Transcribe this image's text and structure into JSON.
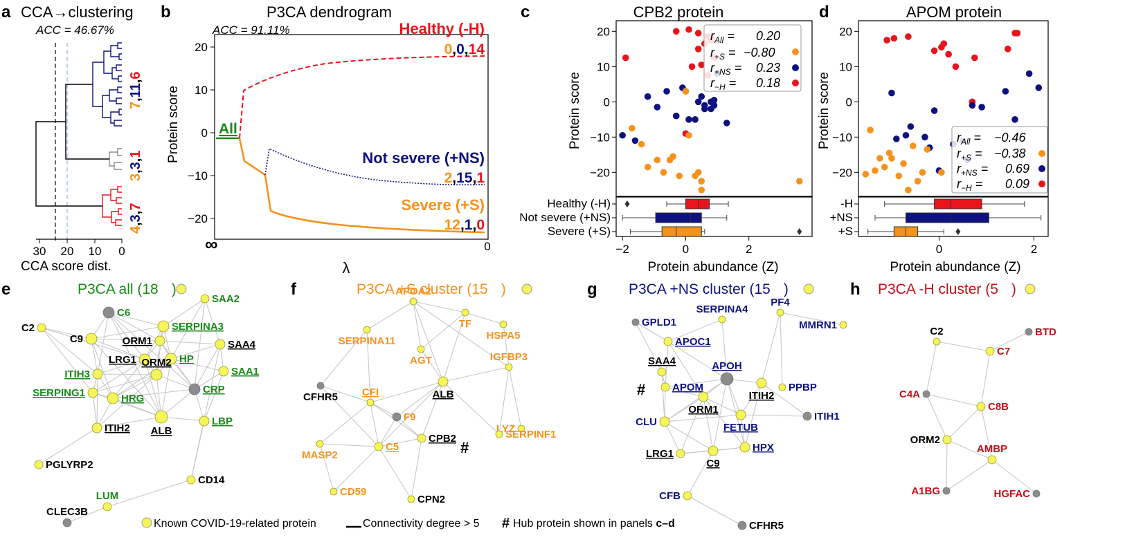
{
  "colors": {
    "healthy": "#e8141c",
    "not_severe": "#0d1280",
    "severe": "#f5921e",
    "green": "#1a8a1a",
    "known": "#f5f55a",
    "gray": "#8c8c8c"
  },
  "panel_a": {
    "letter": "a",
    "title": "CCA→clustering",
    "acc": "ACC = 46.67%",
    "xlabel": "CCA score dist.",
    "ticks": [
      "30",
      "20",
      "10",
      "0"
    ],
    "clusters": [
      {
        "a": "7",
        "b": "11",
        "c": "6"
      },
      {
        "a": "3",
        "b": "3",
        "c": "1"
      },
      {
        "a": "4",
        "b": "3",
        "c": "7"
      }
    ]
  },
  "panel_b": {
    "letter": "b",
    "title": "P3CA dendrogram",
    "acc": "ACC = 91.11%",
    "ylabel": "Protein score",
    "xlabel": "λ",
    "xticks": [
      "∞",
      "0"
    ],
    "all_label": "All",
    "healthy": {
      "label": "Healthy (-H)",
      "a": "0",
      "b": "0",
      "c": "14"
    },
    "not_severe": {
      "label": "Not severe (+NS)",
      "a": "2",
      "b": "15",
      "c": "1"
    },
    "severe": {
      "label": "Severe (+S)",
      "a": "12",
      "b": "1",
      "c": "0"
    }
  },
  "panel_c": {
    "letter": "c",
    "title": "CPB2 protein",
    "ylabel": "Protein score",
    "xlabel": "Protein abundance (Z)",
    "groups": [
      "Healthy (-H)",
      "Not severe (+NS)",
      "Severe (+S)"
    ],
    "stats": [
      {
        "sym": "r",
        "sub": "All",
        "eq": "=",
        "val": "0.20"
      },
      {
        "sym": "r",
        "sub": "+S",
        "eq": "=",
        "val": "−0.80"
      },
      {
        "sym": "r",
        "sub": "+NS",
        "eq": "=",
        "val": "0.23"
      },
      {
        "sym": "r",
        "sub": "−H",
        "eq": "=",
        "val": "0.18"
      }
    ]
  },
  "panel_d": {
    "letter": "d",
    "title": "APOM protein",
    "ylabel": "Protein score",
    "xlabel": "Protein abundance (Z)",
    "groups": [
      "-H",
      "+NS",
      "+S"
    ],
    "stats": [
      {
        "sym": "r",
        "sub": "All",
        "eq": "=",
        "val": "−0.46"
      },
      {
        "sym": "r",
        "sub": "+S",
        "eq": "=",
        "val": "−0.38"
      },
      {
        "sym": "r",
        "sub": "+NS",
        "eq": "=",
        "val": "0.69"
      },
      {
        "sym": "r",
        "sub": "−H",
        "eq": "=",
        "val": "0.09"
      }
    ]
  },
  "panel_e": {
    "letter": "e",
    "title": "P3CA all (18",
    "title_end": ")"
  },
  "panel_f": {
    "letter": "f",
    "title": "P3CA +S cluster (15",
    "title_end": ")"
  },
  "panel_g": {
    "letter": "g",
    "title": "P3CA +NS cluster (15",
    "title_end": ")"
  },
  "panel_h": {
    "letter": "h",
    "title": "P3CA -H cluster (5",
    "title_end": ")"
  },
  "legend": {
    "known": "Known COVID-19-related protein",
    "degree": "Connectivity degree > 5",
    "hash": "#",
    "hub_pre": "Hub protein shown in panels ",
    "hub_bold": "c–d"
  },
  "chart_data": [
    {
      "type": "scatter",
      "title": "CPB2 protein",
      "xlabel": "Protein abundance (Z)",
      "ylabel": "Protein score",
      "xlim": [
        -2.2,
        4.0
      ],
      "ylim": [
        -27,
        23
      ],
      "xticks": [
        -2,
        0,
        2
      ],
      "yticks": [
        -20,
        -10,
        0,
        10,
        20
      ],
      "series": [
        {
          "name": "Healthy (-H)",
          "color": "#e8141c",
          "x": [
            -1.9,
            -0.3,
            0.1,
            0.4,
            0.7,
            0.4,
            0.6,
            0.8,
            0.9,
            0.5,
            0.2,
            0.7,
            0.8,
            0.0
          ],
          "y": [
            12.5,
            20.0,
            20.5,
            19.5,
            18.5,
            15.0,
            16.5,
            17.5,
            12.5,
            10.5,
            10.0,
            7.5,
            18.0,
            -9.0
          ]
        },
        {
          "name": "Not severe (+NS)",
          "color": "#0d1280",
          "x": [
            -2.0,
            -1.6,
            -1.2,
            -0.9,
            -0.6,
            -0.3,
            -0.1,
            0.0,
            0.3,
            0.4,
            0.5,
            0.6,
            0.6,
            0.8,
            0.8,
            0.9,
            0.9,
            1.3,
            0.1,
            1.0
          ],
          "y": [
            -9.5,
            -11.0,
            1.5,
            -1.5,
            3.0,
            -4.0,
            4.0,
            3.0,
            -5.0,
            0.0,
            1.5,
            -1.0,
            -2.0,
            -2.0,
            0.0,
            0.5,
            -1.0,
            -6.0,
            -5.0,
            8.0
          ],
          "note": "approximate"
        },
        {
          "name": "Severe (+S)",
          "color": "#f5921e",
          "x": [
            -1.7,
            -1.4,
            -1.2,
            -0.9,
            -0.7,
            -0.5,
            -0.4,
            -0.2,
            0.0,
            0.1,
            0.3,
            0.4,
            0.5,
            0.5,
            3.6
          ],
          "y": [
            -7.5,
            -12.0,
            -18.5,
            -16.5,
            -20.0,
            -16.5,
            -15.5,
            -21.0,
            3.0,
            -9.5,
            -21.0,
            -20.0,
            -22.5,
            -25.0,
            -22.5
          ]
        }
      ],
      "boxplots": [
        {
          "group": "Healthy (-H)",
          "q1": 0.0,
          "median": 0.4,
          "q3": 0.75,
          "whisker_low": -0.6,
          "whisker_high": 1.35,
          "outliers": [
            -1.85
          ]
        },
        {
          "group": "Not severe (+NS)",
          "q1": -0.95,
          "median": 0.15,
          "q3": 0.5,
          "whisker_low": -2.0,
          "whisker_high": 1.3,
          "outliers": []
        },
        {
          "group": "Severe (+S)",
          "q1": -0.75,
          "median": -0.3,
          "q3": 0.5,
          "whisker_low": -1.75,
          "whisker_high": 0.6,
          "outliers": [
            3.6
          ]
        }
      ]
    },
    {
      "type": "scatter",
      "title": "APOM protein",
      "xlabel": "Protein abundance (Z)",
      "ylabel": "Protein score",
      "xlim": [
        -1.7,
        2.3
      ],
      "ylim": [
        -27,
        23
      ],
      "xticks": [
        0,
        2
      ],
      "yticks": [
        -20,
        -10,
        0,
        10,
        20
      ],
      "series": [
        {
          "name": "Healthy (-H)",
          "color": "#e8141c",
          "x": [
            -1.1,
            -0.95,
            -0.65,
            -0.1,
            0.05,
            0.1,
            0.2,
            0.35,
            0.75,
            1.45,
            1.6,
            1.65,
            0.7
          ],
          "y": [
            17.5,
            18.0,
            18.5,
            14.5,
            15.5,
            16.5,
            13.5,
            10.0,
            12.5,
            15.0,
            19.5,
            19.5,
            0.0
          ],
          "note": "approximate"
        },
        {
          "name": "Not severe (+NS)",
          "color": "#0d1280",
          "x": [
            -1.0,
            -0.9,
            -0.7,
            -0.6,
            -0.3,
            -0.2,
            -0.1,
            0.3,
            0.5,
            0.7,
            0.9,
            1.4,
            1.6,
            1.9,
            2.1,
            0.0,
            0.6
          ],
          "y": [
            2.5,
            -10.5,
            -9.5,
            -7.0,
            -10.0,
            -13.0,
            -2.5,
            -12.0,
            -11.0,
            -1.0,
            -1.5,
            3.0,
            -5.0,
            8.0,
            4.0,
            -19.5,
            -16.5
          ],
          "note": "approximate"
        },
        {
          "name": "Severe (+S)",
          "color": "#f5921e",
          "x": [
            -1.55,
            -1.45,
            -1.35,
            -1.25,
            -1.15,
            -1.05,
            -1.0,
            -0.85,
            -0.75,
            -0.65,
            -0.55,
            -0.45,
            -0.35,
            -0.25,
            0.05
          ],
          "y": [
            -20.5,
            -8.0,
            -19.5,
            -16.0,
            -18.5,
            -14.5,
            -16.0,
            -21.0,
            -17.5,
            -25.0,
            -12.5,
            -22.5,
            -20.0,
            -13.5,
            -20.0
          ]
        }
      ],
      "boxplots": [
        {
          "group": "-H",
          "q1": -0.1,
          "median": 0.25,
          "q3": 0.9,
          "whisker_low": -1.15,
          "whisker_high": 1.8,
          "outliers": []
        },
        {
          "group": "+NS",
          "q1": -0.7,
          "median": 0.25,
          "q3": 1.05,
          "whisker_low": -1.35,
          "whisker_high": 2.15,
          "outliers": []
        },
        {
          "group": "+S",
          "q1": -0.95,
          "median": -0.7,
          "q3": -0.45,
          "whisker_low": -1.5,
          "whisker_high": 0.1,
          "outliers": [
            0.4
          ]
        }
      ]
    }
  ],
  "networks": {
    "e": {
      "nodes": [
        {
          "id": "C6",
          "label": "C6",
          "color": "green",
          "known": false,
          "u": false
        },
        {
          "id": "SAA2",
          "label": "SAA2",
          "color": "green",
          "known": true,
          "u": false
        },
        {
          "id": "C2",
          "label": "C2",
          "color": "black",
          "known": true,
          "u": false
        },
        {
          "id": "C9",
          "label": "C9",
          "color": "black",
          "known": true,
          "u": false
        },
        {
          "id": "SERPINA3",
          "label": "SERPINA3",
          "color": "green",
          "known": true,
          "u": true
        },
        {
          "id": "ORM1",
          "label": "ORM1",
          "color": "black",
          "known": true,
          "u": true
        },
        {
          "id": "SAA4",
          "label": "SAA4",
          "color": "black",
          "known": true,
          "u": true
        },
        {
          "id": "LRG1",
          "label": "LRG1",
          "color": "black",
          "known": true,
          "u": true
        },
        {
          "id": "HP",
          "label": "HP",
          "color": "green",
          "known": true,
          "u": true
        },
        {
          "id": "ITIH3",
          "label": "ITIH3",
          "color": "green",
          "known": true,
          "u": true
        },
        {
          "id": "SAA1",
          "label": "SAA1",
          "color": "green",
          "known": true,
          "u": true
        },
        {
          "id": "ORM2",
          "label": "ORM2",
          "color": "black",
          "known": true,
          "u": true
        },
        {
          "id": "SERPING1",
          "label": "SERPING1",
          "color": "green",
          "known": true,
          "u": true
        },
        {
          "id": "CRP",
          "label": "CRP",
          "color": "green",
          "known": false,
          "u": true
        },
        {
          "id": "HRG",
          "label": "HRG",
          "color": "green",
          "known": true,
          "u": true
        },
        {
          "id": "LBP",
          "label": "LBP",
          "color": "green",
          "known": true,
          "u": true
        },
        {
          "id": "ITIH2",
          "label": "ITIH2",
          "color": "black",
          "known": true,
          "u": true
        },
        {
          "id": "ALB",
          "label": "ALB",
          "color": "black",
          "known": true,
          "u": true
        },
        {
          "id": "PGLYRP2",
          "label": "PGLYRP2",
          "color": "black",
          "known": true,
          "u": false
        },
        {
          "id": "CD14",
          "label": "CD14",
          "color": "black",
          "known": true,
          "u": false
        },
        {
          "id": "LUM",
          "label": "LUM",
          "color": "green",
          "known": true,
          "u": false
        },
        {
          "id": "CLEC3B",
          "label": "CLEC3B",
          "color": "black",
          "known": false,
          "u": false
        }
      ]
    },
    "f": {
      "nodes": [
        {
          "id": "APOA2",
          "label": "APOA2",
          "color": "orange",
          "known": true,
          "u": false
        },
        {
          "id": "TF",
          "label": "TF",
          "color": "orange",
          "known": true,
          "u": false
        },
        {
          "id": "HSPA5",
          "label": "HSPA5",
          "color": "orange",
          "known": true,
          "u": false
        },
        {
          "id": "SERPINA11",
          "label": "SERPINA11",
          "color": "orange",
          "known": true,
          "u": false
        },
        {
          "id": "AGT",
          "label": "AGT",
          "color": "orange",
          "known": true,
          "u": false
        },
        {
          "id": "IGFBP3",
          "label": "IGFBP3",
          "color": "orange",
          "known": true,
          "u": false
        },
        {
          "id": "CFHR5",
          "label": "CFHR5",
          "color": "black",
          "known": false,
          "u": false
        },
        {
          "id": "CFI",
          "label": "CFI",
          "color": "orange",
          "known": true,
          "u": true
        },
        {
          "id": "ALB",
          "label": "ALB",
          "color": "black",
          "known": true,
          "u": true
        },
        {
          "id": "F9",
          "label": "F9",
          "color": "orange",
          "known": false,
          "u": false
        },
        {
          "id": "LYZ",
          "label": "LYZ",
          "color": "orange",
          "known": true,
          "u": false
        },
        {
          "id": "SERPINF1",
          "label": "SERPINF1",
          "color": "orange",
          "known": true,
          "u": false
        },
        {
          "id": "C5",
          "label": "C5",
          "color": "orange",
          "known": true,
          "u": true
        },
        {
          "id": "CPB2",
          "label": "CPB2",
          "color": "black",
          "known": true,
          "u": true
        },
        {
          "id": "MASP2",
          "label": "MASP2",
          "color": "orange",
          "known": true,
          "u": false
        },
        {
          "id": "CD59",
          "label": "CD59",
          "color": "orange",
          "known": true,
          "u": false
        },
        {
          "id": "CPN2",
          "label": "CPN2",
          "color": "black",
          "known": true,
          "u": false
        }
      ]
    },
    "g": {
      "nodes": [
        {
          "id": "GPLD1",
          "label": "GPLD1",
          "color": "navy",
          "known": false,
          "u": false
        },
        {
          "id": "SERPINA4",
          "label": "SERPINA4",
          "color": "navy",
          "known": true,
          "u": false
        },
        {
          "id": "PF4",
          "label": "PF4",
          "color": "navy",
          "known": true,
          "u": false
        },
        {
          "id": "MMRN1",
          "label": "MMRN1",
          "color": "navy",
          "known": true,
          "u": false
        },
        {
          "id": "APOC1",
          "label": "APOC1",
          "color": "navy",
          "known": true,
          "u": true
        },
        {
          "id": "SAA4",
          "label": "SAA4",
          "color": "black",
          "known": true,
          "u": true
        },
        {
          "id": "APOH",
          "label": "APOH",
          "color": "navy",
          "known": false,
          "u": true
        },
        {
          "id": "APOM",
          "label": "APOM",
          "color": "navy",
          "known": true,
          "u": true
        },
        {
          "id": "ITIH2",
          "label": "ITIH2",
          "color": "black",
          "known": true,
          "u": true
        },
        {
          "id": "PPBP",
          "label": "PPBP",
          "color": "navy",
          "known": true,
          "u": false
        },
        {
          "id": "ORM1",
          "label": "ORM1",
          "color": "black",
          "known": true,
          "u": true
        },
        {
          "id": "CLU",
          "label": "CLU",
          "color": "navy",
          "known": true,
          "u": false
        },
        {
          "id": "FETUB",
          "label": "FETUB",
          "color": "navy",
          "known": true,
          "u": true
        },
        {
          "id": "ITIH1",
          "label": "ITIH1",
          "color": "navy",
          "known": false,
          "u": false
        },
        {
          "id": "HPX",
          "label": "HPX",
          "color": "navy",
          "known": true,
          "u": true
        },
        {
          "id": "LRG1",
          "label": "LRG1",
          "color": "black",
          "known": true,
          "u": true
        },
        {
          "id": "C9",
          "label": "C9",
          "color": "black",
          "known": true,
          "u": true
        },
        {
          "id": "CFB",
          "label": "CFB",
          "color": "navy",
          "known": true,
          "u": false
        },
        {
          "id": "CFHR5",
          "label": "CFHR5",
          "color": "black",
          "known": false,
          "u": false
        }
      ]
    },
    "h": {
      "nodes": [
        {
          "id": "BTD",
          "label": "BTD",
          "color": "red",
          "known": false,
          "u": false
        },
        {
          "id": "C2",
          "label": "C2",
          "color": "black",
          "known": true,
          "u": false
        },
        {
          "id": "C7",
          "label": "C7",
          "color": "red",
          "known": true,
          "u": false
        },
        {
          "id": "C4A",
          "label": "C4A",
          "color": "red",
          "known": false,
          "u": false
        },
        {
          "id": "C8B",
          "label": "C8B",
          "color": "red",
          "known": true,
          "u": false
        },
        {
          "id": "ORM2",
          "label": "ORM2",
          "color": "black",
          "known": true,
          "u": false
        },
        {
          "id": "AMBP",
          "label": "AMBP",
          "color": "red",
          "known": true,
          "u": false
        },
        {
          "id": "A1BG",
          "label": "A1BG",
          "color": "red",
          "known": false,
          "u": false
        },
        {
          "id": "HGFAC",
          "label": "HGFAC",
          "color": "red",
          "known": false,
          "u": false
        }
      ]
    }
  }
}
